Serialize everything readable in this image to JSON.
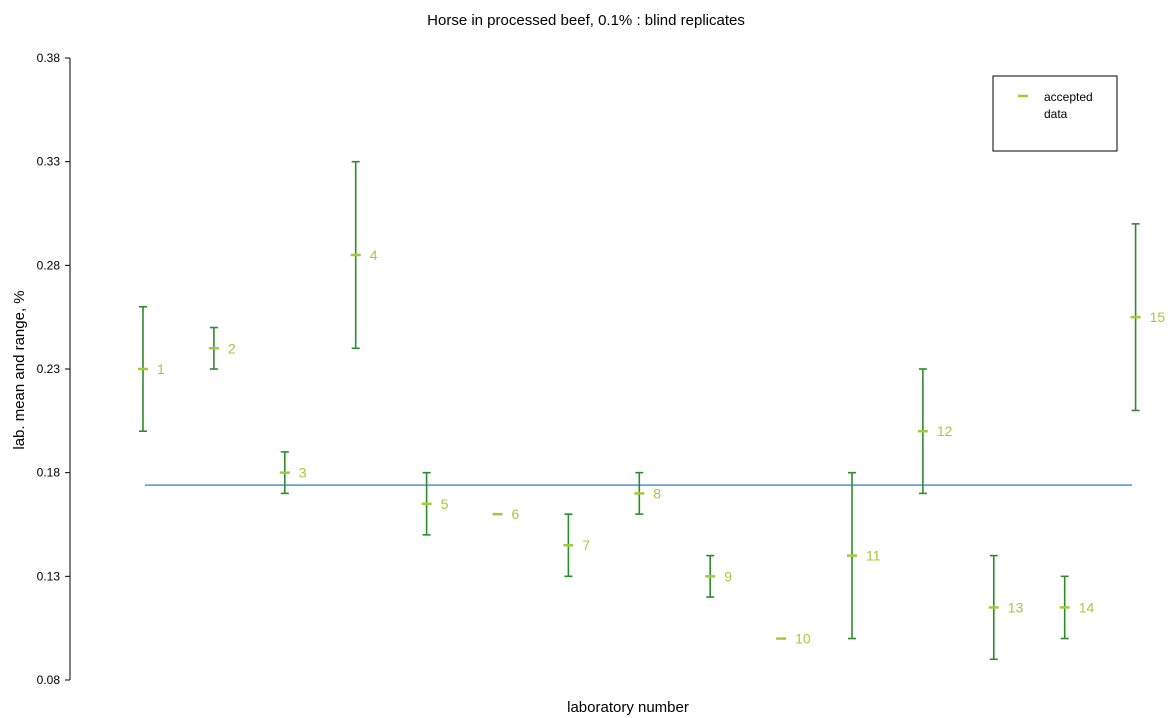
{
  "chart_data": {
    "type": "scatter",
    "title": "Horse in processed beef, 0.1% : blind replicates",
    "xlabel": "laboratory number",
    "ylabel": "lab. mean and range, %",
    "ylim": [
      0.08,
      0.38
    ],
    "yticks": [
      "0.08",
      "0.13",
      "0.18",
      "0.23",
      "0.28",
      "0.33",
      "0.38"
    ],
    "reference_line": 0.174,
    "legend": {
      "label_line1": "accepted",
      "label_line2": "data",
      "placement": "top-right"
    },
    "colors": {
      "range": "#2e8b2e",
      "mean": "#a8c83c",
      "label": "#a8c83c",
      "reference": "#4a90d9",
      "axis": "#000000"
    },
    "series": [
      {
        "values": [
          {
            "lab": "1",
            "mean": 0.23,
            "low": 0.2,
            "high": 0.26
          },
          {
            "lab": "2",
            "mean": 0.24,
            "low": 0.23,
            "high": 0.25
          },
          {
            "lab": "3",
            "mean": 0.18,
            "low": 0.17,
            "high": 0.19
          },
          {
            "lab": "4",
            "mean": 0.285,
            "low": 0.24,
            "high": 0.33
          },
          {
            "lab": "5",
            "mean": 0.165,
            "low": 0.15,
            "high": 0.18
          },
          {
            "lab": "6",
            "mean": 0.16,
            "low": 0.16,
            "high": 0.16
          },
          {
            "lab": "7",
            "mean": 0.145,
            "low": 0.13,
            "high": 0.16
          },
          {
            "lab": "8",
            "mean": 0.17,
            "low": 0.16,
            "high": 0.18
          },
          {
            "lab": "9",
            "mean": 0.13,
            "low": 0.12,
            "high": 0.14
          },
          {
            "lab": "10",
            "mean": 0.1,
            "low": 0.1,
            "high": 0.1
          },
          {
            "lab": "11",
            "mean": 0.14,
            "low": 0.1,
            "high": 0.18
          },
          {
            "lab": "12",
            "mean": 0.2,
            "low": 0.17,
            "high": 0.23
          },
          {
            "lab": "13",
            "mean": 0.115,
            "low": 0.09,
            "high": 0.14
          },
          {
            "lab": "14",
            "mean": 0.115,
            "low": 0.1,
            "high": 0.13
          },
          {
            "lab": "15",
            "mean": 0.255,
            "low": 0.21,
            "high": 0.3
          }
        ]
      }
    ]
  }
}
